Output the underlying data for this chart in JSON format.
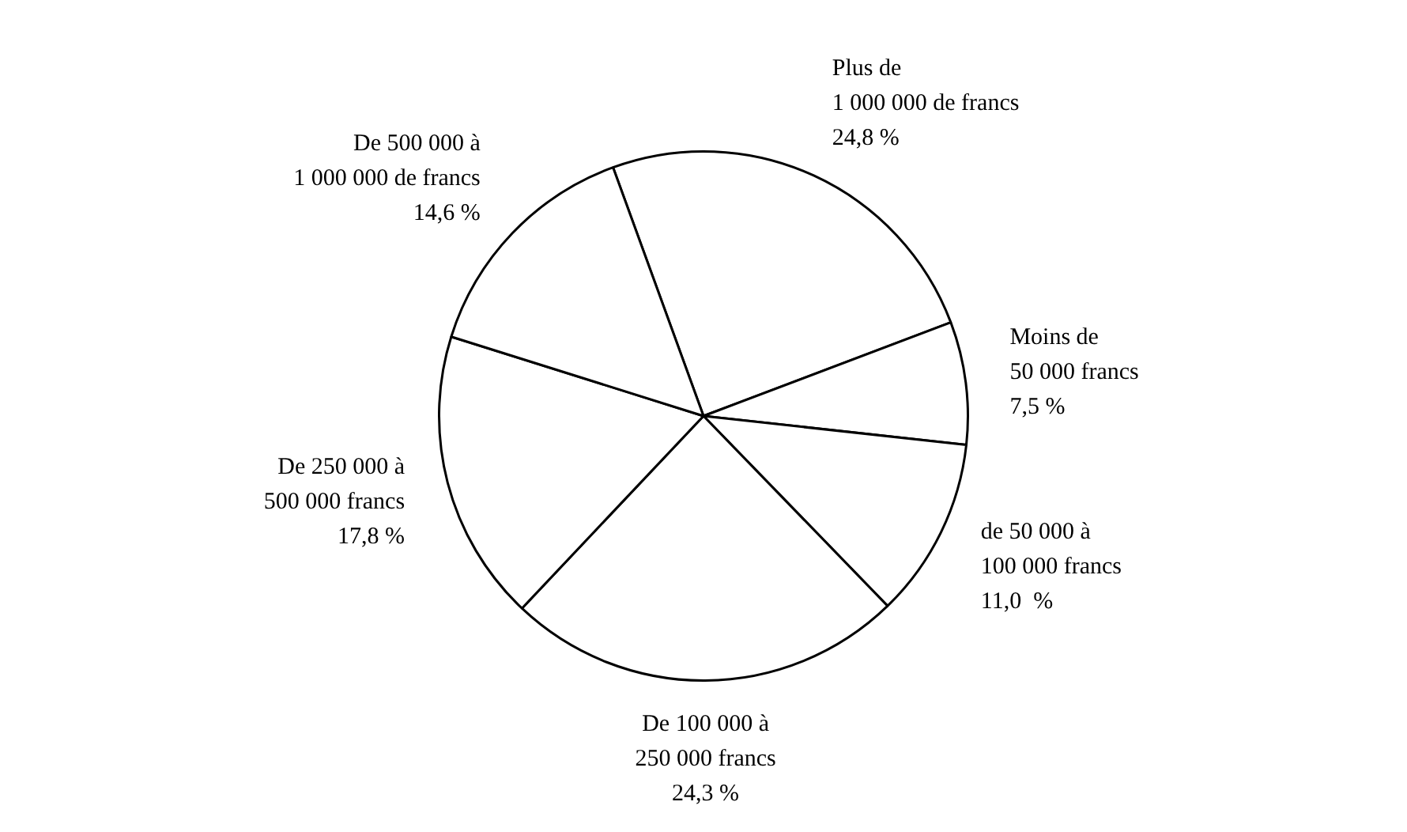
{
  "chart_data": {
    "type": "pie",
    "categories": [
      "Plus de\n1 000 000 de francs",
      "Moins de\n50 000 francs",
      "de 50 000 à\n100 000 francs",
      "De 100 000 à\n250 000 francs",
      "De 250 000 à\n500 000 francs",
      "De 500 000 à\n1 000 000 de francs"
    ],
    "values": [
      24.8,
      7.5,
      11.0,
      24.3,
      17.8,
      14.6
    ],
    "value_labels": [
      "24,8 %",
      "7,5 %",
      "11,0  %",
      "24,3 %",
      "17,8 %",
      "14,6 %"
    ],
    "colors": [
      "#ffffff",
      "#ffffff",
      "#ffffff",
      "#ffffff",
      "#ffffff",
      "#ffffff"
    ],
    "legend": false
  }
}
